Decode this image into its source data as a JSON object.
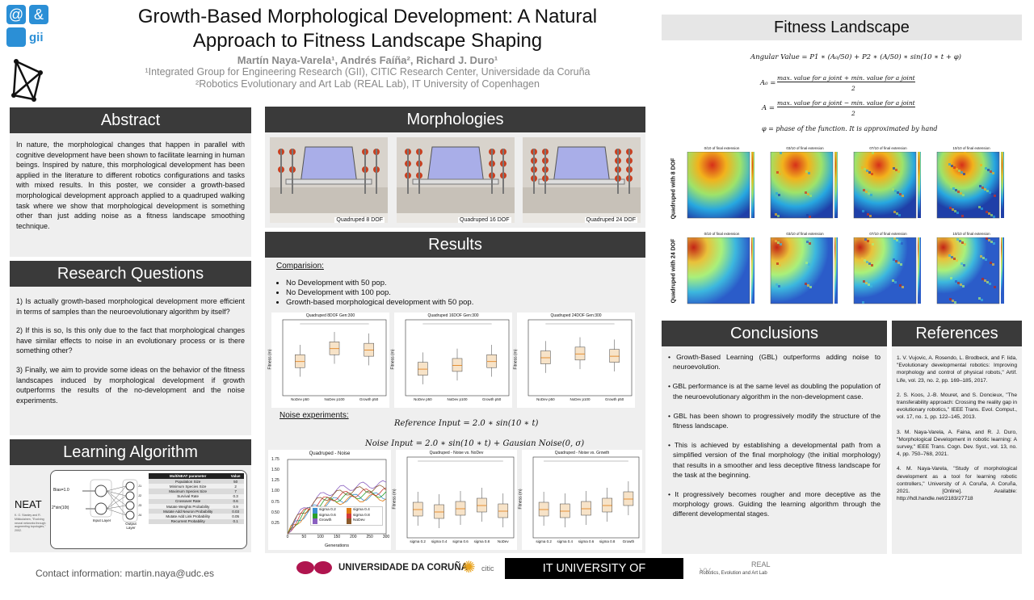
{
  "header": {
    "title_line1": "Growth-Based Morphological Development: A Natural",
    "title_line2": "Approach to Fitness Landscape Shaping",
    "authors": "Martín Naya-Varela¹, Andrés Faíña², Richard J. Duro¹",
    "affiliation1": "¹Integrated Group for Engineering Research (GII), CITIC Research Center, Universidade da Coruña",
    "affiliation2": "²Robotics Evolutionary and Art Lab (REAL Lab), IT University of Copenhagen",
    "logo_text": "gii"
  },
  "abstract": {
    "heading": "Abstract",
    "text": "In nature, the morphological changes that happen in parallel with cognitive development have been shown to facilitate learning in human beings. Inspired by nature, this morphological development has been applied in the literature to different robotics configurations and tasks with mixed results. In this poster, we consider a growth-based morphological development approach applied to a quadruped walking task where we show that morphological development is something other than just adding noise as a fitness landscape smoothing technique."
  },
  "research_questions": {
    "heading": "Research Questions",
    "items": [
      "1) Is actually growth-based morphological development more efficient in terms of samples than the neuroevolutionary algorithm by itself?",
      "2) If this is so, Is this only due to the fact that morphological changes have similar effects to noise in an evolutionary process or is there something other?",
      "3) Finally, we aim to provide some ideas on the behavior of the fitness landscapes induced by morphological development if growth outperforms the results of the no-development and the noise experiments."
    ]
  },
  "learning_algorithm": {
    "heading": "Learning Algorithm",
    "neat_label": "NEAT",
    "neat_ref": "K. O. Stanley and R. Miikkulainen, \"Evolving neural networks through augmenting topologies,\" 2002.",
    "input1": "Bias=1.0",
    "input2": "2*sin(10t)",
    "input_layer": "Input Layer",
    "output_layer": "Output Layer",
    "outputs": [
      "J1",
      "J2",
      "J3",
      "J4"
    ],
    "table_headers": [
      "MultiNEAT parameter",
      "Value"
    ],
    "table_rows": [
      [
        "Population Size",
        "50"
      ],
      [
        "Minimum Species Size",
        "2"
      ],
      [
        "Maximum Species Size",
        "7"
      ],
      [
        "Survival Rate",
        "0.3"
      ],
      [
        "Crossover Rate",
        "0.6"
      ],
      [
        "Mutate Weights Probability",
        "0.9"
      ],
      [
        "Mutate Add Neuron Probability",
        "0.03"
      ],
      [
        "Mutate Add Link Probability",
        "0.05"
      ],
      [
        "Recurrent Probability",
        "0.1"
      ]
    ]
  },
  "contact": "Contact information: martin.naya@udc.es",
  "morphologies": {
    "heading": "Morphologies",
    "captions": [
      "Quadruped 8 DOF",
      "Quadruped 16 DOF",
      "Quadruped 24 DOF"
    ]
  },
  "results": {
    "heading": "Results",
    "comparison_label": "Comparision:",
    "comparison_items": [
      "No Development with 50 pop.",
      "No Development with 100 pop.",
      "Growth-based morphological development with 50 pop."
    ],
    "box_titles": [
      "Quadruped 8DOF Gen:300",
      "Quadruped 16DOF Gen:300",
      "Quadruped 24DOF Gen:300"
    ],
    "box_xlabels": [
      "NoDev p50",
      "NoDev p100",
      "Growth p50"
    ],
    "ylabel": "Fitness (m)",
    "noise_label": "Noise experiments:",
    "reference_input": "Reference Input = 2.0 ∗ sin(10 ∗ t)",
    "noise_input": "Noise Input = 2.0 ∗ sin(10 ∗ t) + Gausian Noise(0, σ)",
    "noise_titles": [
      "Quadruped - Noise",
      "Quadruped - Noise vs. NoDev",
      "Quadruped - Noise vs. Growth"
    ],
    "noise_legend": [
      "sigma 0.2",
      "sigma 0.4",
      "sigma 0.6",
      "sigma 0.8",
      "Growth",
      "NoDev"
    ],
    "noise_xlabel": "Generations",
    "noise_xticks": [
      "0",
      "50",
      "100",
      "150",
      "200",
      "250",
      "300"
    ],
    "noise_yticks": [
      "0.25",
      "0.50",
      "0.75",
      "1.00",
      "1.25",
      "1.50",
      "1.75"
    ],
    "noise_box_x1": [
      "sigma 0.2",
      "sigma 0.4",
      "sigma 0.6",
      "sigma 0.8",
      "NoDev"
    ],
    "noise_box_x2": [
      "sigma 0.2",
      "sigma 0.4",
      "sigma 0.6",
      "sigma 0.8",
      "Growth"
    ]
  },
  "fitness_landscape": {
    "heading": "Fitness Landscape",
    "eq1": "Angular Value = P1 ∗ (A₀/50) + P2 ∗ (A/50) ∗ sin(10 ∗ t + φ)",
    "eq2_lhs": "A₀ =",
    "eq2_num": "max. value for a joint + min. value for a joint",
    "eq2_den": "2",
    "eq3_lhs": "A =",
    "eq3_num": "max. value for a joint − min. value for a joint",
    "eq3_den": "2",
    "eq4": "φ = phase of the function. It is approximated by hand",
    "row_labels": [
      "Quadruped with 8 DOF",
      "Quadruped with 24 DOF"
    ],
    "tile_titles": [
      "0/10 of final extension",
      "03/10 of final extension",
      "07/10 of final extension",
      "10/10 of final extension"
    ]
  },
  "conclusions": {
    "heading": "Conclusions",
    "items": [
      "Growth-Based Learning (GBL) outperforms adding noise to neuroevolution.",
      "GBL performance is at the same level as doubling the population of the neuroevolutionary algorithm in the non-development case.",
      "GBL has been shown to progressively modify the structure of the fitness landscape.",
      "This is achieved by establishing a developmental path from a simplified version of the final morphology (the initial morphology) that results in a smoother and less deceptive fitness landscape for the task at the beginning.",
      "It progressively becomes rougher and more deceptive as the morphology grows. Guiding the learning algorithm through the different developmental stages."
    ]
  },
  "references": {
    "heading": "References",
    "items": [
      "1. V. Vujovic, A. Rosendo, L. Brodbeck, and F. Iida, \"Evolutionary developmental robotics: Improving morphology and control of physical robots,\" Artif. Life, vol. 23, no. 2, pp. 169–185, 2017.",
      "2. S. Koos, J.-B. Mouret, and S. Doncieux, \"The transferability approach: Crossing the reality gap in evolutionary robotics,\" IEEE Trans. Evol. Comput., vol. 17, no. 1, pp. 122–145, 2013.",
      "3. M. Naya-Varela, A. Faina, and R. J. Duro, \"Morphological Development in robotic learning: A survey,\" IEEE Trans. Cogn. Dev. Syst., vol. 13, no. 4, pp. 750–768, 2021.",
      "4. M. Naya-Varela, \"Study of morphological development as a tool for learning robotic controllers,\" University of A Coruña, A Coruña, 2021. [Online]. Available: http://hdl.handle.net/2183/27718"
    ]
  },
  "footer_logos": {
    "udc": "UNIVERSIDADE DA CORUÑA",
    "citic": "citic",
    "itu": "IT UNIVERSITY OF COPENHAGEN",
    "real": "REAL",
    "real_sub": "Robotics, Evolution and Art Lab"
  }
}
